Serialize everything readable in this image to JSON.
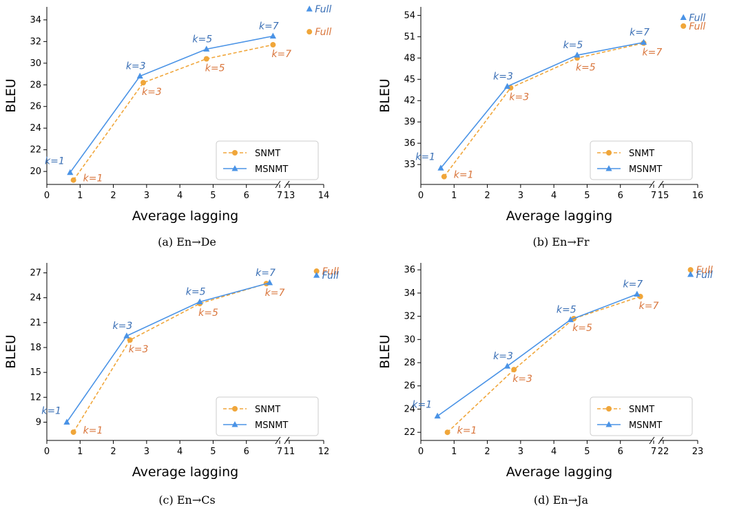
{
  "colors": {
    "snmt": "#f0a63a",
    "snmt_label": "#d9753b",
    "msnmt": "#4a93e6",
    "msnmt_label": "#3a6fb5"
  },
  "chart_data": [
    {
      "type": "line",
      "caption": "(a) En→De",
      "xlabel": "Average lagging",
      "ylabel": "BLEU",
      "ylim": [
        18.8,
        35.2
      ],
      "yticks": [
        20,
        22,
        24,
        26,
        28,
        30,
        32,
        34
      ],
      "xticks": [
        "0",
        "1",
        "2",
        "3",
        "4",
        "5",
        "6",
        "7",
        "13",
        "14"
      ],
      "x_axis_break": {
        "left_segment": [
          0,
          7
        ],
        "right_segment": [
          13,
          14
        ]
      },
      "legend": "lower-right",
      "series": [
        {
          "name": "SNMT",
          "marker": "circle",
          "style": "dashed",
          "x": [
            0.8,
            2.9,
            4.8,
            6.8
          ],
          "y": [
            19.2,
            28.2,
            30.4,
            31.7
          ],
          "labels": [
            "k=1",
            "k=3",
            "k=5",
            "k=7"
          ],
          "full": {
            "label": "Full",
            "x": 13.6,
            "y": 32.9
          }
        },
        {
          "name": "MSNMT",
          "marker": "triangle",
          "style": "solid",
          "x": [
            0.7,
            2.8,
            4.8,
            6.8
          ],
          "y": [
            19.9,
            28.8,
            31.3,
            32.5
          ],
          "labels": [
            "k=1",
            "k=3",
            "k=5",
            "k=7"
          ],
          "full": {
            "label": "Full",
            "x": 13.6,
            "y": 35.0
          }
        }
      ]
    },
    {
      "type": "line",
      "caption": "(b) En→Fr",
      "xlabel": "Average lagging",
      "ylabel": "BLEU",
      "ylim": [
        30.2,
        55.2
      ],
      "yticks": [
        33,
        36,
        39,
        42,
        45,
        48,
        51,
        54
      ],
      "xticks": [
        "0",
        "1",
        "2",
        "3",
        "4",
        "5",
        "6",
        "7",
        "15",
        "16"
      ],
      "x_axis_break": {
        "left_segment": [
          0,
          7
        ],
        "right_segment": [
          15,
          16
        ]
      },
      "legend": "lower-right",
      "series": [
        {
          "name": "SNMT",
          "marker": "circle",
          "style": "dashed",
          "x": [
            0.7,
            2.7,
            4.7,
            6.7
          ],
          "y": [
            31.3,
            43.8,
            48.0,
            50.1
          ],
          "labels": [
            "k=1",
            "k=3",
            "k=5",
            "k=7"
          ],
          "full": {
            "label": "Full",
            "x": 15.6,
            "y": 52.5
          }
        },
        {
          "name": "MSNMT",
          "marker": "triangle",
          "style": "solid",
          "x": [
            0.6,
            2.6,
            4.7,
            6.7
          ],
          "y": [
            32.5,
            44.0,
            48.4,
            50.2
          ],
          "labels": [
            "k=1",
            "k=3",
            "k=5",
            "k=7"
          ],
          "full": {
            "label": "Full",
            "x": 15.6,
            "y": 53.7
          }
        }
      ]
    },
    {
      "type": "line",
      "caption": "(c) En→Cs",
      "xlabel": "Average lagging",
      "ylabel": "BLEU",
      "ylim": [
        6.8,
        28.2
      ],
      "yticks": [
        9,
        12,
        15,
        18,
        21,
        24,
        27
      ],
      "xticks": [
        "0",
        "1",
        "2",
        "3",
        "4",
        "5",
        "6",
        "7",
        "11",
        "12"
      ],
      "x_axis_break": {
        "left_segment": [
          0,
          7
        ],
        "right_segment": [
          11,
          12
        ]
      },
      "legend": "lower-right",
      "series": [
        {
          "name": "SNMT",
          "marker": "circle",
          "style": "dashed",
          "x": [
            0.8,
            2.5,
            4.6,
            6.6
          ],
          "y": [
            7.8,
            18.9,
            23.3,
            25.7
          ],
          "labels": [
            "k=1",
            "k=3",
            "k=5",
            "k=7"
          ],
          "full": {
            "label": "Full",
            "x": 11.8,
            "y": 27.2
          }
        },
        {
          "name": "MSNMT",
          "marker": "triangle",
          "style": "solid",
          "x": [
            0.6,
            2.4,
            4.6,
            6.7
          ],
          "y": [
            9.0,
            19.4,
            23.5,
            25.8
          ],
          "labels": [
            "k=1",
            "k=3",
            "k=5",
            "k=7"
          ],
          "full": {
            "label": "Full",
            "x": 11.8,
            "y": 26.7
          }
        }
      ]
    },
    {
      "type": "line",
      "caption": "(d) En→Ja",
      "xlabel": "Average lagging",
      "ylabel": "BLEU",
      "ylim": [
        21.3,
        36.6
      ],
      "yticks": [
        22,
        24,
        26,
        28,
        30,
        32,
        34,
        36
      ],
      "xticks": [
        "0",
        "1",
        "2",
        "3",
        "4",
        "5",
        "6",
        "7",
        "22",
        "23"
      ],
      "x_axis_break": {
        "left_segment": [
          0,
          7
        ],
        "right_segment": [
          22,
          23
        ]
      },
      "legend": "lower-right",
      "series": [
        {
          "name": "SNMT",
          "marker": "circle",
          "style": "dashed",
          "x": [
            0.8,
            2.8,
            4.6,
            6.6
          ],
          "y": [
            22.0,
            27.4,
            31.8,
            33.7
          ],
          "labels": [
            "k=1",
            "k=3",
            "k=5",
            "k=7"
          ],
          "full": {
            "label": "Full",
            "x": 22.8,
            "y": 36.0
          }
        },
        {
          "name": "MSNMT",
          "marker": "triangle",
          "style": "solid",
          "x": [
            0.5,
            2.6,
            4.5,
            6.5
          ],
          "y": [
            23.4,
            27.7,
            31.7,
            33.9
          ],
          "labels": [
            "k=1",
            "k=3",
            "k=5",
            "k=7"
          ],
          "full": {
            "label": "Full",
            "x": 22.8,
            "y": 35.6
          }
        }
      ]
    }
  ]
}
